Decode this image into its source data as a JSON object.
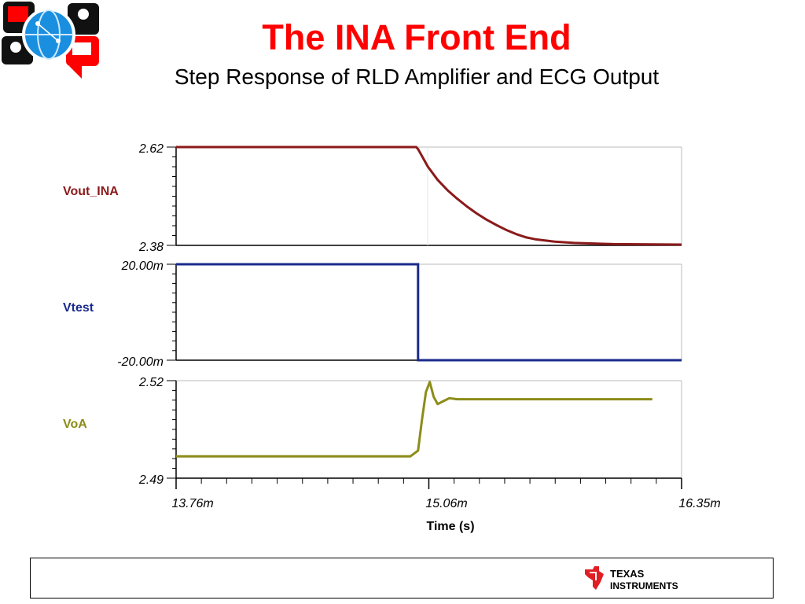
{
  "header": {
    "title": "The INA Front End",
    "subtitle": "Step Response of RLD Amplifier and ECG Output"
  },
  "footer": {
    "brand_line1": "TEXAS",
    "brand_line2": "INSTRUMENTS"
  },
  "colors": {
    "title": "#ff0000",
    "vout_ina": "#8b1a1a",
    "vtest": "#1a2a8c",
    "voa": "#8c8c1a",
    "ti_red": "#e01f25"
  },
  "icons": [
    "network-globe-icon",
    "texas-instruments-logo-icon"
  ],
  "chart_data": {
    "type": "line",
    "xlabel": "Time (s)",
    "x_ticks": [
      "13.76m",
      "15.06m",
      "16.35m"
    ],
    "x_range": [
      13.76,
      16.35
    ],
    "x_unit": "m",
    "panels": [
      {
        "name": "Vout_INA",
        "y_ticks": [
          "2.62",
          "2.38"
        ],
        "ylim": [
          2.38,
          2.62
        ],
        "color": "#8b1a1a",
        "points": [
          [
            13.76,
            2.62
          ],
          [
            14.99,
            2.62
          ],
          [
            15.0,
            2.615
          ],
          [
            15.02,
            2.598
          ],
          [
            15.05,
            2.572
          ],
          [
            15.1,
            2.54
          ],
          [
            15.15,
            2.515
          ],
          [
            15.2,
            2.494
          ],
          [
            15.25,
            2.475
          ],
          [
            15.3,
            2.458
          ],
          [
            15.35,
            2.443
          ],
          [
            15.4,
            2.43
          ],
          [
            15.45,
            2.418
          ],
          [
            15.5,
            2.408
          ],
          [
            15.55,
            2.4
          ],
          [
            15.6,
            2.395
          ],
          [
            15.7,
            2.389
          ],
          [
            15.8,
            2.386
          ],
          [
            16.0,
            2.383
          ],
          [
            16.35,
            2.382
          ]
        ]
      },
      {
        "name": "Vtest",
        "y_ticks": [
          "20.00m",
          "-20.00m"
        ],
        "ylim": [
          -20.0,
          20.0
        ],
        "color": "#1a2a8c",
        "points": [
          [
            13.76,
            20.0
          ],
          [
            15.0,
            20.0
          ],
          [
            15.0,
            -20.0
          ],
          [
            16.35,
            -20.0
          ]
        ]
      },
      {
        "name": "VoA",
        "y_ticks": [
          "2.52",
          "2.49"
        ],
        "ylim": [
          2.49,
          2.52
        ],
        "color": "#8c8c1a",
        "points": [
          [
            13.76,
            2.4967
          ],
          [
            14.96,
            2.4967
          ],
          [
            15.0,
            2.4985
          ],
          [
            15.02,
            2.508
          ],
          [
            15.04,
            2.5165
          ],
          [
            15.06,
            2.5196
          ],
          [
            15.08,
            2.515
          ],
          [
            15.1,
            2.5128
          ],
          [
            15.13,
            2.5137
          ],
          [
            15.16,
            2.5146
          ],
          [
            15.2,
            2.5143
          ],
          [
            15.3,
            2.5143
          ],
          [
            16.2,
            2.5143
          ]
        ]
      }
    ]
  }
}
